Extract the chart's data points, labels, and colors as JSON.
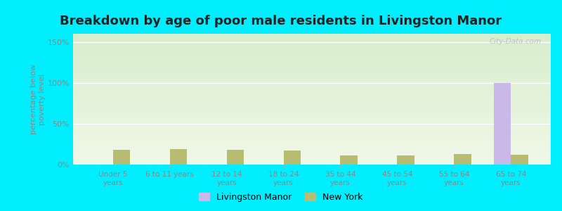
{
  "title": "Breakdown by age of poor male residents in Livingston Manor",
  "categories": [
    "Under 5\nyears",
    "6 to 11 years",
    "12 to 14\nyears",
    "18 to 24\nyears",
    "35 to 44\nyears",
    "45 to 54\nyears",
    "55 to 64\nyears",
    "65 to 74\nyears"
  ],
  "livingston_manor": [
    0,
    0,
    0,
    0,
    0,
    0,
    0,
    100
  ],
  "new_york": [
    18,
    19,
    18,
    17,
    11,
    11,
    13,
    12
  ],
  "bar_color_livingston": "#c9b8e8",
  "bar_color_ny": "#b8bc72",
  "ylabel": "percentage below\npoverty level",
  "ylim": [
    0,
    160
  ],
  "yticks": [
    0,
    50,
    100,
    150
  ],
  "ytick_labels": [
    "0%",
    "50%",
    "100%",
    "150%"
  ],
  "bg_top_color": "#e8f5e0",
  "bg_bottom_color": "#d4edba",
  "outer_background": "#00eeff",
  "watermark": "City-Data.com",
  "title_fontsize": 13,
  "legend_labels": [
    "Livingston Manor",
    "New York"
  ],
  "bar_width": 0.3,
  "tick_color": "#888888",
  "label_color": "#888888"
}
